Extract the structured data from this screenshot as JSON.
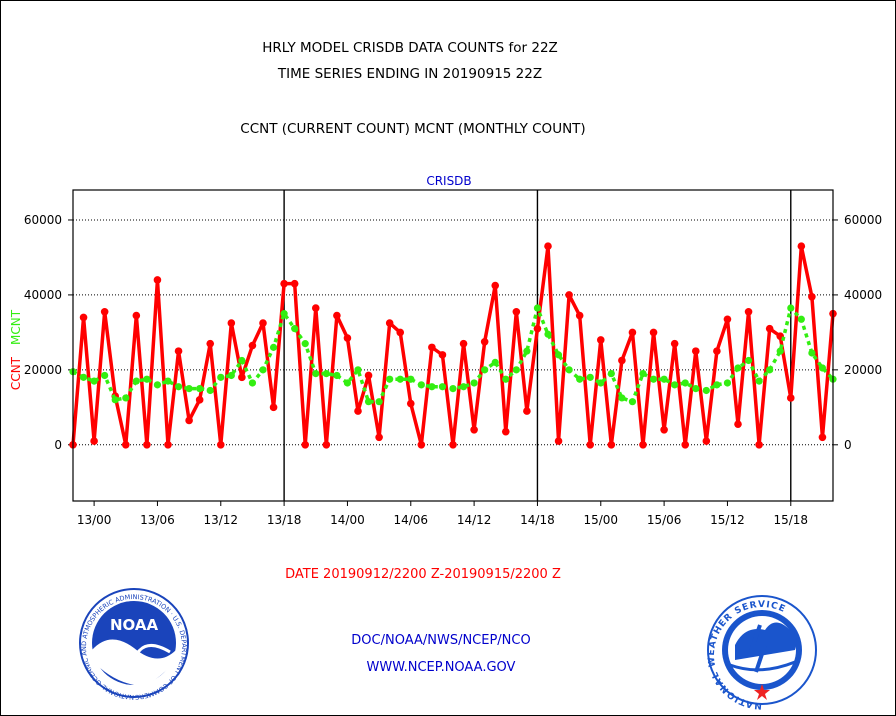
{
  "titles": {
    "line1": "HRLY MODEL CRISDB DATA COUNTS for 22Z",
    "line2": "TIME SERIES ENDING IN 20190915 22Z",
    "line3": "CCNT (CURRENT COUNT) MCNT (MONTHLY COUNT)"
  },
  "footer": {
    "date_range": "DATE 20190912/2200 Z-20190915/2200 Z",
    "org_line": "DOC/NOAA/NWS/NCEP/NCO",
    "url_line": "WWW.NCEP.NOAA.GOV"
  },
  "logos": {
    "noaa_text": "NOAA",
    "noaa_ring_text": "NATIONAL OCEANIC AND ATMOSPHERIC ADMINISTRATION · U.S. DEPARTMENT OF COMMERCE",
    "nws_ring_text": "NATIONAL WEATHER SERVICE"
  },
  "colors": {
    "ccnt": "#ff0000",
    "mcnt": "#33ee11",
    "title": "#000000",
    "date_range": "#ff0000",
    "org": "#0000cc",
    "noaa_blue": "#1a44bb",
    "nws_blue": "#1a55cc"
  },
  "chart_data": {
    "type": "line",
    "title": "CRISDB",
    "ylabel_parts": [
      "CCNT",
      "MCNT"
    ],
    "ylim": [
      -15000,
      68000
    ],
    "yticks": [
      0,
      20000,
      40000,
      60000
    ],
    "ytick_labels": [
      "0",
      "20000",
      "40000",
      "60000"
    ],
    "grid": true,
    "x_hours_range": [
      0,
      72
    ],
    "xticks": [
      2,
      8,
      14,
      20,
      26,
      32,
      38,
      44,
      50,
      56,
      62,
      68
    ],
    "xtick_labels": [
      "13/00",
      "13/06",
      "13/12",
      "13/18",
      "14/00",
      "14/06",
      "14/12",
      "14/18",
      "15/00",
      "15/06",
      "15/12",
      "15/18"
    ],
    "day_separators": [
      20,
      44,
      68
    ],
    "series": [
      {
        "name": "CCNT",
        "values": [
          0,
          34000,
          1000,
          35500,
          13000,
          0,
          34500,
          0,
          44000,
          0,
          25000,
          6500,
          12000,
          27000,
          0,
          32500,
          18000,
          26500,
          32500,
          10000,
          43000,
          43000,
          0,
          36500,
          0,
          34500,
          28500,
          9000,
          18500,
          2000,
          32500,
          30000,
          11000,
          0,
          26000,
          24000,
          0,
          27000,
          4000,
          27500,
          42500,
          3500,
          35500,
          9000,
          31000,
          53000,
          1000,
          40000,
          34500,
          0,
          28000,
          0,
          22500,
          30000,
          0,
          30000,
          4000,
          27000,
          0,
          25000,
          1000,
          25000,
          33500,
          5500,
          35500,
          0,
          31000,
          29000,
          12500,
          53000,
          39500,
          2000,
          35000
        ]
      },
      {
        "name": "MCNT",
        "values": [
          19500,
          18000,
          17000,
          18500,
          12000,
          12500,
          17000,
          17500,
          16000,
          17000,
          15500,
          15000,
          15000,
          14500,
          18000,
          18500,
          22500,
          16500,
          20000,
          26000,
          35000,
          31000,
          27000,
          19000,
          19000,
          18500,
          16500,
          20000,
          11500,
          11500,
          17500,
          17500,
          17500,
          16000,
          15500,
          15500,
          15000,
          15500,
          16500,
          20000,
          22000,
          17500,
          20000,
          25000,
          36500,
          29500,
          24000,
          20000,
          17500,
          18000,
          16500,
          19000,
          12500,
          11500,
          19000,
          17500,
          17500,
          16000,
          16500,
          15000,
          14500,
          16000,
          16500,
          20500,
          22500,
          17000,
          20000,
          25000,
          36500,
          33500,
          24500,
          20500,
          17500
        ]
      }
    ]
  }
}
